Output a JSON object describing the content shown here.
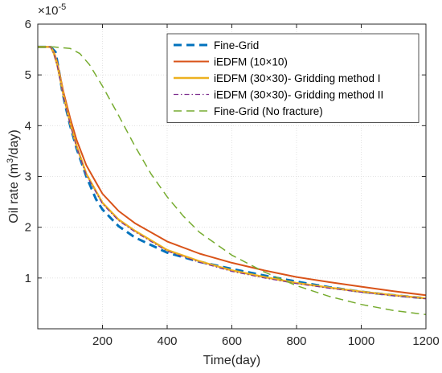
{
  "chart_data": {
    "type": "line",
    "xlabel": "Time(day)",
    "ylabel_main": "Oil rate (m",
    "ylabel_sup": "3",
    "ylabel_tail": "/day)",
    "exponent_base": "×10",
    "exponent_power": "-5",
    "xlim": [
      0,
      1200
    ],
    "ylim": [
      0,
      6
    ],
    "xticks": [
      200,
      400,
      600,
      800,
      1000,
      1200
    ],
    "yticks": [
      1,
      2,
      3,
      4,
      5,
      6
    ],
    "grid": true,
    "legend_position": "top-right",
    "series": [
      {
        "name": "Fine-Grid",
        "color": "#0072BD",
        "dash": "dashed",
        "width": 3,
        "x": [
          0,
          40,
          55,
          65,
          75,
          85,
          100,
          120,
          150,
          180,
          200,
          250,
          300,
          400,
          500,
          600,
          700,
          800,
          900,
          1000,
          1100,
          1200
        ],
        "y": [
          5.55,
          5.55,
          5.45,
          5.1,
          4.7,
          4.4,
          4.0,
          3.55,
          3.0,
          2.55,
          2.35,
          2.02,
          1.8,
          1.5,
          1.32,
          1.18,
          1.05,
          0.93,
          0.82,
          0.73,
          0.66,
          0.6
        ]
      },
      {
        "name": "iEDFM (10×10)",
        "color": "#D95319",
        "dash": "solid",
        "width": 2,
        "x": [
          0,
          40,
          50,
          60,
          70,
          80,
          100,
          120,
          150,
          200,
          250,
          300,
          400,
          500,
          600,
          700,
          800,
          900,
          1000,
          1100,
          1200
        ],
        "y": [
          5.55,
          5.55,
          5.45,
          5.25,
          4.95,
          4.65,
          4.15,
          3.72,
          3.22,
          2.66,
          2.32,
          2.08,
          1.72,
          1.48,
          1.3,
          1.15,
          1.02,
          0.92,
          0.83,
          0.74,
          0.66
        ]
      },
      {
        "name": "iEDFM (30×30)- Gridding method I",
        "color": "#EDB120",
        "dash": "solid",
        "width": 2.5,
        "x": [
          0,
          40,
          50,
          60,
          70,
          80,
          100,
          120,
          150,
          200,
          250,
          300,
          400,
          500,
          600,
          700,
          800,
          900,
          1000,
          1100,
          1200
        ],
        "y": [
          5.55,
          5.55,
          5.42,
          5.2,
          4.9,
          4.58,
          4.05,
          3.6,
          3.05,
          2.48,
          2.15,
          1.93,
          1.55,
          1.33,
          1.15,
          1.02,
          0.9,
          0.81,
          0.73,
          0.66,
          0.6
        ]
      },
      {
        "name": "iEDFM (30×30)- Gridding method II",
        "color": "#7E2F8E",
        "dash": "dashdot",
        "width": 1.2,
        "x": [
          0,
          40,
          50,
          60,
          70,
          80,
          100,
          120,
          150,
          200,
          250,
          300,
          400,
          500,
          600,
          700,
          800,
          900,
          1000,
          1100,
          1200
        ],
        "y": [
          5.55,
          5.55,
          5.41,
          5.18,
          4.88,
          4.56,
          4.03,
          3.58,
          3.03,
          2.46,
          2.13,
          1.91,
          1.53,
          1.31,
          1.13,
          1.0,
          0.89,
          0.8,
          0.72,
          0.65,
          0.59
        ]
      },
      {
        "name": "Fine-Grid (No fracture)",
        "color": "#77AC30",
        "dash": "dashed",
        "width": 1.5,
        "x": [
          0,
          50,
          100,
          130,
          160,
          200,
          250,
          300,
          350,
          400,
          450,
          500,
          600,
          700,
          800,
          900,
          1000,
          1100,
          1200
        ],
        "y": [
          5.55,
          5.55,
          5.52,
          5.42,
          5.2,
          4.78,
          4.2,
          3.6,
          3.05,
          2.6,
          2.22,
          1.9,
          1.45,
          1.12,
          0.85,
          0.64,
          0.48,
          0.36,
          0.28
        ]
      }
    ]
  }
}
